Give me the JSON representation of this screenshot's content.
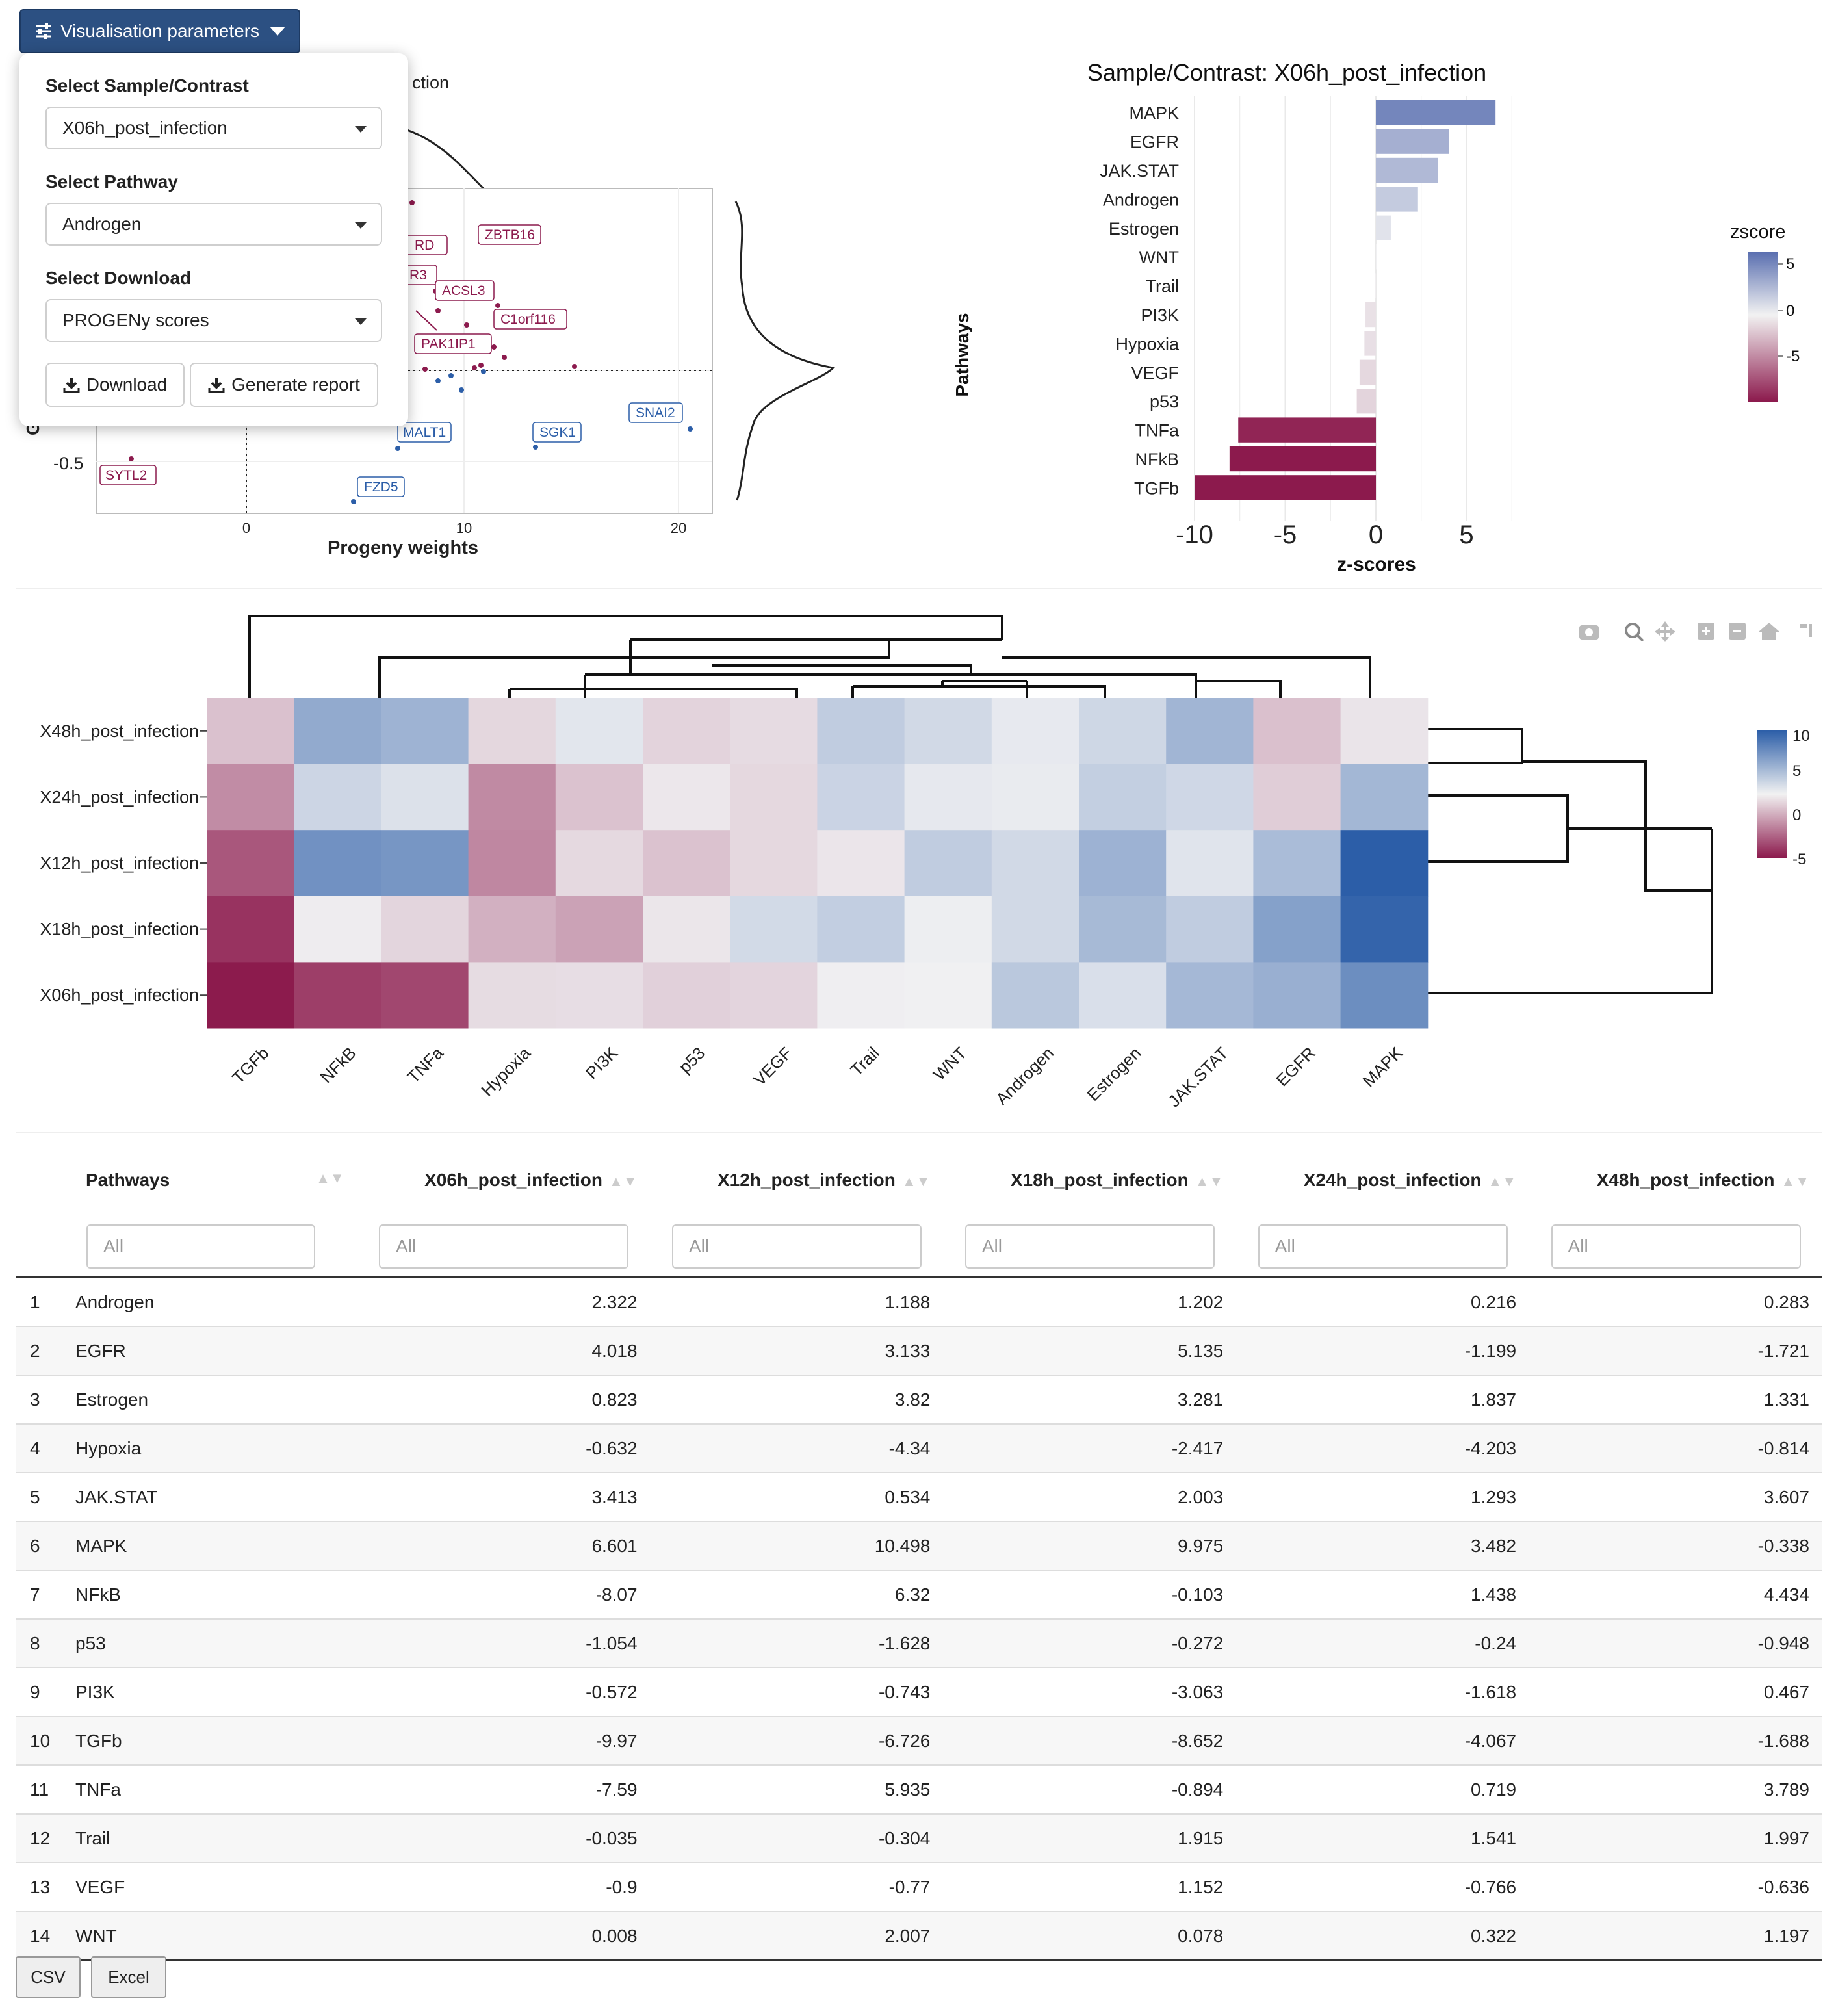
{
  "panel": {
    "toggle_label": "Visualisation parameters",
    "sample_label": "Select Sample/Contrast",
    "sample_value": "X06h_post_infection",
    "pathway_label": "Select Pathway",
    "pathway_value": "Androgen",
    "download_label": "Select Download",
    "download_value": "PROGENy scores",
    "download_button": "Download",
    "report_button": "Generate report"
  },
  "scatter": {
    "title_fragment": "ction",
    "xlabel": "Progeny weights",
    "ylabel_fragment": "G",
    "x_ticks": [
      "0",
      "10",
      "20"
    ],
    "y_tick": "-0.5",
    "genes_red": [
      "ZBTB16",
      "RD",
      "R3",
      "ACSL3",
      "C1orf116",
      "PAK1IP1",
      "SYTL2"
    ],
    "genes_blue": [
      "MALT1",
      "SGK1",
      "SNAI2",
      "FZD5"
    ]
  },
  "chart_data": [
    {
      "type": "bar",
      "title": "Sample/Contrast: X06h_post_infection",
      "xlabel": "z-scores",
      "ylabel": "Pathways",
      "xlim": [
        -10,
        7
      ],
      "x_ticks": [
        "-10",
        "-5",
        "0",
        "5"
      ],
      "legend_title": "zscore",
      "legend_ticks": [
        "5",
        "0",
        "-5"
      ],
      "legend_position": "right",
      "grid": true,
      "categories": [
        "MAPK",
        "EGFR",
        "JAK.STAT",
        "Androgen",
        "Estrogen",
        "WNT",
        "Trail",
        "PI3K",
        "Hypoxia",
        "VEGF",
        "p53",
        "TNFa",
        "NFkB",
        "TGFb"
      ],
      "values": [
        6.601,
        4.018,
        3.413,
        2.322,
        0.823,
        0.008,
        -0.035,
        -0.572,
        -0.632,
        -0.9,
        -1.054,
        -7.59,
        -8.07,
        -9.97
      ],
      "colors": {
        "positive": "#5a6fb0",
        "negative": "#8c1a4d",
        "neutral": "#f2f2f2"
      }
    },
    {
      "type": "heatmap",
      "rows": [
        "X48h_post_infection",
        "X24h_post_infection",
        "X12h_post_infection",
        "X18h_post_infection",
        "X06h_post_infection"
      ],
      "columns": [
        "TGFb",
        "NFkB",
        "TNFa",
        "Hypoxia",
        "PI3K",
        "p53",
        "VEGF",
        "Trail",
        "WNT",
        "Androgen",
        "Estrogen",
        "JAK.STAT",
        "EGFR",
        "MAPK"
      ],
      "values": [
        [
          -1.688,
          4.434,
          3.789,
          -0.814,
          0.467,
          -0.948,
          -0.636,
          1.997,
          1.197,
          0.283,
          1.331,
          3.607,
          -1.721,
          -0.338
        ],
        [
          -4.067,
          1.438,
          0.719,
          -4.203,
          -1.618,
          -0.24,
          -0.766,
          1.541,
          0.322,
          0.216,
          1.837,
          1.293,
          -1.199,
          3.482
        ],
        [
          -6.726,
          6.32,
          5.935,
          -4.34,
          -0.743,
          -1.628,
          -0.77,
          -0.304,
          2.007,
          1.188,
          3.82,
          0.534,
          3.133,
          10.498
        ],
        [
          -8.652,
          -0.103,
          -0.894,
          -2.417,
          -3.063,
          -0.272,
          1.152,
          1.915,
          0.078,
          1.202,
          3.281,
          2.003,
          5.135,
          9.975
        ],
        [
          -9.97,
          -8.07,
          -7.59,
          -0.632,
          -0.572,
          -1.054,
          -0.9,
          -0.035,
          0.008,
          2.322,
          0.823,
          3.413,
          4.018,
          6.601
        ]
      ],
      "colorscale_ticks": [
        "10",
        "5",
        "0",
        "-5"
      ],
      "colorscale_range": [
        -10,
        10.5
      ]
    }
  ],
  "table": {
    "headers": [
      "Pathways",
      "X06h_post_infection",
      "X12h_post_infection",
      "X18h_post_infection",
      "X24h_post_infection",
      "X48h_post_infection"
    ],
    "filter_placeholder": "All",
    "rows": [
      [
        "1",
        "Androgen",
        "2.322",
        "1.188",
        "1.202",
        "0.216",
        "0.283"
      ],
      [
        "2",
        "EGFR",
        "4.018",
        "3.133",
        "5.135",
        "-1.199",
        "-1.721"
      ],
      [
        "3",
        "Estrogen",
        "0.823",
        "3.82",
        "3.281",
        "1.837",
        "1.331"
      ],
      [
        "4",
        "Hypoxia",
        "-0.632",
        "-4.34",
        "-2.417",
        "-4.203",
        "-0.814"
      ],
      [
        "5",
        "JAK.STAT",
        "3.413",
        "0.534",
        "2.003",
        "1.293",
        "3.607"
      ],
      [
        "6",
        "MAPK",
        "6.601",
        "10.498",
        "9.975",
        "3.482",
        "-0.338"
      ],
      [
        "7",
        "NFkB",
        "-8.07",
        "6.32",
        "-0.103",
        "1.438",
        "4.434"
      ],
      [
        "8",
        "p53",
        "-1.054",
        "-1.628",
        "-0.272",
        "-0.24",
        "-0.948"
      ],
      [
        "9",
        "PI3K",
        "-0.572",
        "-0.743",
        "-3.063",
        "-1.618",
        "0.467"
      ],
      [
        "10",
        "TGFb",
        "-9.97",
        "-6.726",
        "-8.652",
        "-4.067",
        "-1.688"
      ],
      [
        "11",
        "TNFa",
        "-7.59",
        "5.935",
        "-0.894",
        "0.719",
        "3.789"
      ],
      [
        "12",
        "Trail",
        "-0.035",
        "-0.304",
        "1.915",
        "1.541",
        "1.997"
      ],
      [
        "13",
        "VEGF",
        "-0.9",
        "-0.77",
        "1.152",
        "-0.766",
        "-0.636"
      ],
      [
        "14",
        "WNT",
        "0.008",
        "2.007",
        "0.078",
        "0.322",
        "1.197"
      ]
    ],
    "csv_button": "CSV",
    "excel_button": "Excel"
  }
}
